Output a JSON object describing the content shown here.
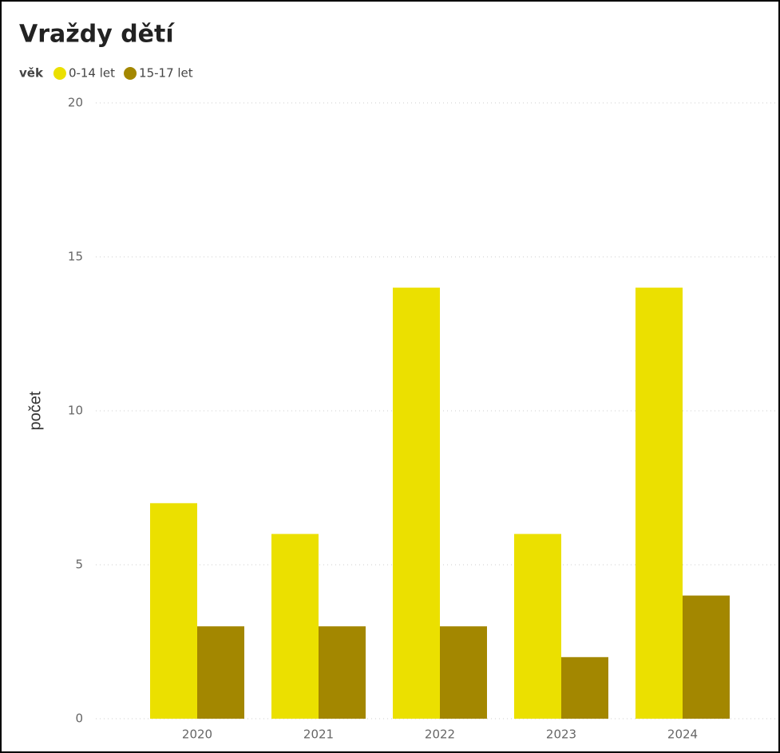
{
  "chart_data": {
    "type": "bar",
    "title": "Vraždy dětí",
    "legend_title": "věk",
    "categories": [
      "2020",
      "2021",
      "2022",
      "2023",
      "2024"
    ],
    "series": [
      {
        "name": "0-14 let",
        "color": "#ebe000",
        "values": [
          7,
          6,
          14,
          6,
          14
        ]
      },
      {
        "name": "15-17 let",
        "color": "#a38700",
        "values": [
          3,
          3,
          3,
          2,
          4
        ]
      }
    ],
    "y_label": "počet",
    "ylim": [
      0,
      20
    ],
    "yticks": [
      0,
      5,
      10,
      15,
      20
    ],
    "grid": true,
    "legend_position": "top-left"
  }
}
